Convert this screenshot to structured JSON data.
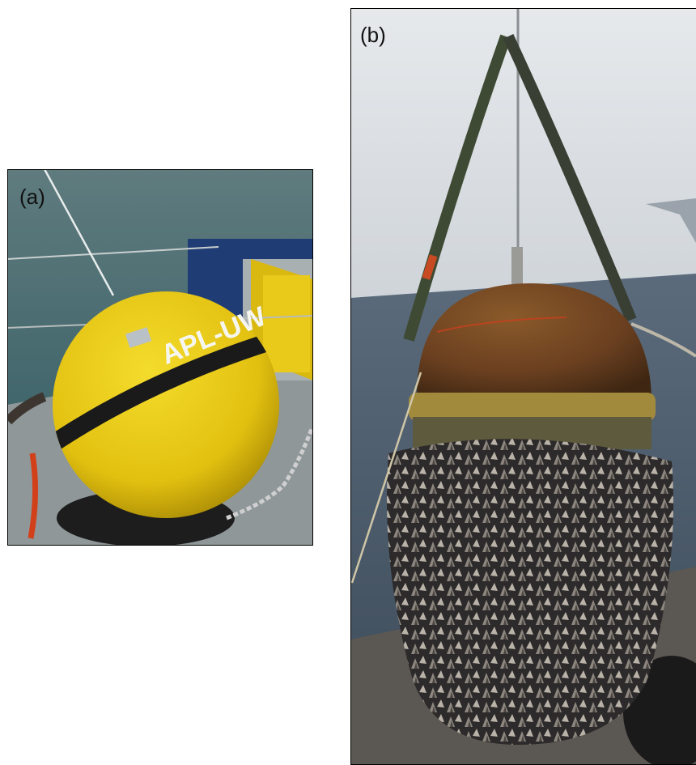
{
  "panels": [
    {
      "label": "(a)",
      "photo_text": "APL-UW"
    },
    {
      "label": "(b)"
    }
  ]
}
